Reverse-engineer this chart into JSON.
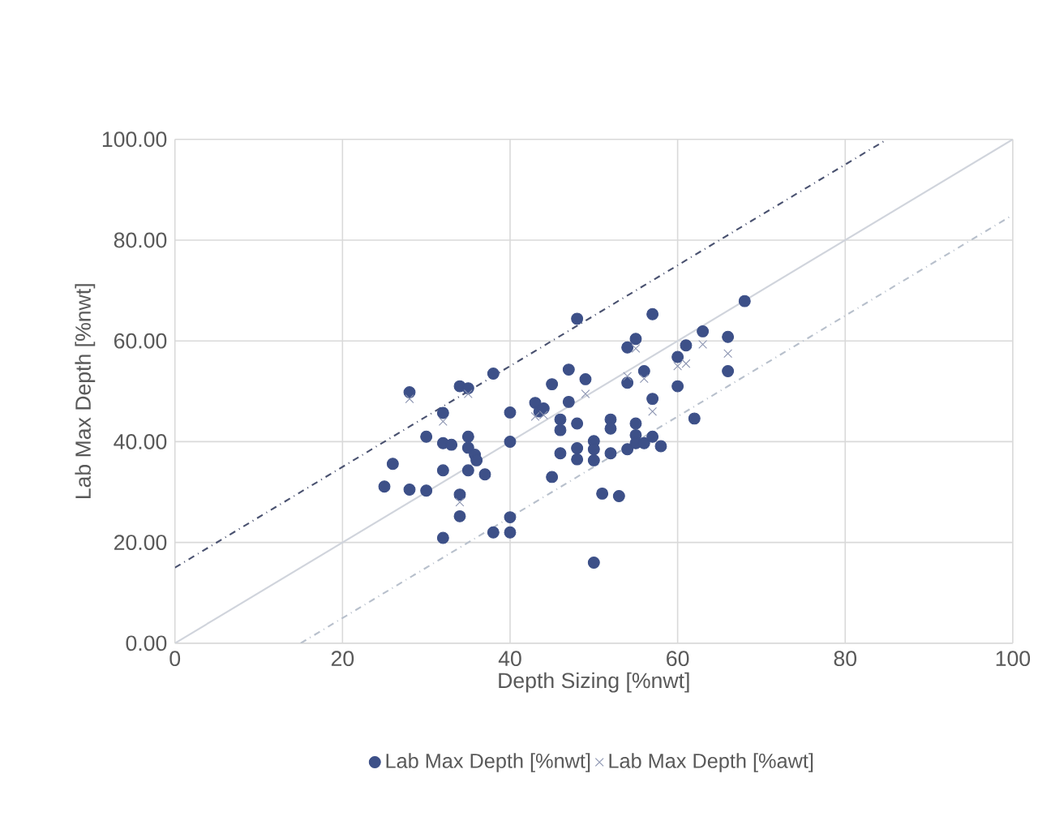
{
  "chart_data": {
    "type": "scatter",
    "xlabel": "Depth Sizing [%nwt]",
    "ylabel": "Lab Max Depth [%nwt]",
    "xlim": [
      0,
      100
    ],
    "ylim": [
      0,
      100
    ],
    "xticks": [
      0,
      20,
      40,
      60,
      80,
      100
    ],
    "yticks": [
      {
        "value": 0,
        "label": "0.00"
      },
      {
        "value": 20,
        "label": "20.00"
      },
      {
        "value": 40,
        "label": "40.00"
      },
      {
        "value": 60,
        "label": "60.00"
      },
      {
        "value": 80,
        "label": "80.00"
      },
      {
        "value": 100,
        "label": "100.00"
      }
    ],
    "grid": true,
    "legend": "bottom",
    "series": [
      {
        "name": "Lab Max Depth [%nwt]",
        "color": "#3d5088",
        "marker": "circle",
        "x": [
          25,
          26,
          28,
          28,
          30,
          30,
          32,
          32,
          32,
          32,
          33,
          34,
          34,
          34,
          35,
          35,
          35,
          35,
          35.8,
          36,
          37,
          38,
          38,
          40,
          40,
          40,
          40,
          43,
          43.5,
          44,
          45,
          45,
          46,
          46,
          46,
          47,
          47,
          48,
          48,
          48,
          48,
          49,
          50,
          50,
          50,
          50,
          51,
          52,
          52,
          52,
          53,
          54,
          54,
          54,
          55,
          55,
          55,
          55,
          56,
          56,
          57,
          57,
          57,
          58,
          60,
          60,
          61,
          62,
          63,
          66,
          66,
          68
        ],
        "values": [
          31.1,
          35.6,
          49.8,
          30.5,
          41,
          30.3,
          45.7,
          39.7,
          34.3,
          20.9,
          39.4,
          51,
          29.5,
          25.2,
          50.6,
          41,
          38.8,
          34.3,
          37.4,
          36.3,
          33.5,
          53.5,
          22,
          45.8,
          40,
          25,
          22,
          47.7,
          46,
          46.6,
          51.4,
          33,
          44.4,
          42.3,
          37.7,
          54.3,
          47.9,
          64.4,
          43.6,
          38.7,
          36.5,
          52.4,
          40.1,
          38.5,
          36.3,
          16,
          29.7,
          44.4,
          42.6,
          37.7,
          29.2,
          58.7,
          51.7,
          38.5,
          60.4,
          43.6,
          41.3,
          39.7,
          54,
          39.7,
          65.3,
          48.5,
          41,
          39.1,
          51,
          56.8,
          59.1,
          44.6,
          61.9,
          60.8,
          54,
          67.9
        ]
      },
      {
        "name": "Lab Max Depth [%awt]",
        "color": "#8a93b0",
        "marker": "cross",
        "x": [
          28,
          32,
          34,
          35,
          43,
          44,
          49,
          54,
          55,
          56,
          57,
          60,
          61,
          63,
          66
        ],
        "values": [
          48.5,
          44,
          28,
          49.5,
          45,
          45.3,
          49.5,
          53,
          58.5,
          52.5,
          46,
          55,
          55.5,
          59.3,
          57.5
        ]
      },
      {
        "type": "line",
        "color": "#4a5270",
        "line_style": "dashed",
        "x": [
          0,
          85
        ],
        "values": [
          15,
          100
        ]
      },
      {
        "type": "line",
        "color": "#d0d4dc",
        "line_style": "solid",
        "x": [
          0,
          100
        ],
        "values": [
          0,
          100
        ]
      },
      {
        "type": "line",
        "color": "#b8c0cc",
        "line_style": "dashed",
        "x": [
          15,
          100
        ],
        "values": [
          0,
          85
        ]
      }
    ]
  }
}
